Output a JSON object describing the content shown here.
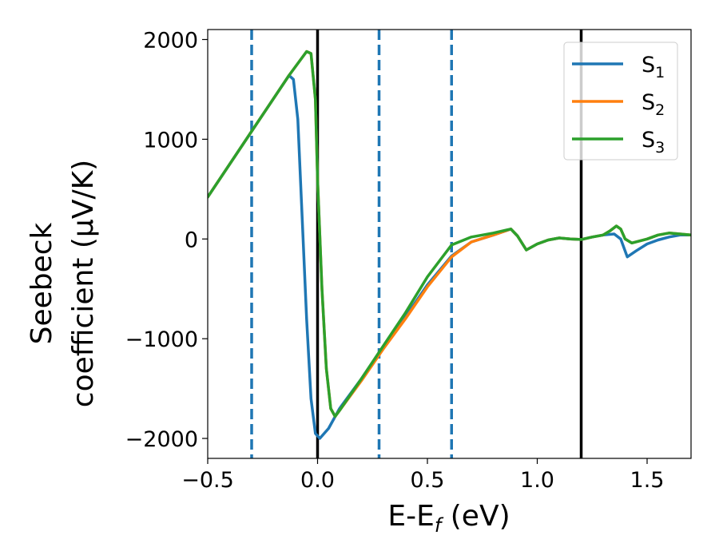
{
  "chart_data": {
    "type": "line",
    "xlabel": "E-E",
    "xlabel_sub": "f",
    "xlabel_unit": " (eV)",
    "ylabel_line1": "Seebeck",
    "ylabel_line2": "coefficient  (μV/K)",
    "xlim": [
      -0.5,
      1.7
    ],
    "ylim": [
      -2200,
      2100
    ],
    "xticks": [
      -0.5,
      0.0,
      0.5,
      1.0,
      1.5
    ],
    "xtick_labels": [
      "−0.5",
      "0.0",
      "0.5",
      "1.0",
      "1.5"
    ],
    "yticks": [
      -2000,
      -1000,
      0,
      1000,
      2000
    ],
    "ytick_labels": [
      "−2000",
      "−1000",
      "0",
      "1000",
      "2000"
    ],
    "grid": false,
    "legend_position": "top-right",
    "vlines_solid": [
      0.0,
      1.2
    ],
    "vlines_dashed": [
      -0.3,
      0.28,
      0.61
    ],
    "colors": {
      "S1": "#1f77b4",
      "S2": "#ff7f0e",
      "S3": "#2ca02c",
      "solid_line": "#000000",
      "dashed_line": "#1f77b4"
    },
    "series": [
      {
        "key": "S1",
        "name": "S",
        "sub": "1",
        "color": "#1f77b4",
        "x": [
          -0.5,
          -0.3,
          -0.13,
          -0.11,
          -0.09,
          -0.07,
          -0.05,
          -0.03,
          -0.01,
          0.01,
          0.05,
          0.1,
          0.2,
          0.3,
          0.4,
          0.5,
          0.61,
          0.7,
          0.8,
          0.88,
          0.91,
          0.95,
          1.0,
          1.05,
          1.1,
          1.15,
          1.2,
          1.25,
          1.3,
          1.35,
          1.38,
          1.41,
          1.45,
          1.5,
          1.55,
          1.6,
          1.65,
          1.7
        ],
        "y": [
          420,
          1080,
          1640,
          1600,
          1200,
          200,
          -800,
          -1600,
          -1950,
          -2000,
          -1900,
          -1700,
          -1400,
          -1080,
          -780,
          -460,
          -170,
          -30,
          40,
          100,
          30,
          -110,
          -50,
          -10,
          10,
          0,
          -5,
          20,
          40,
          50,
          0,
          -180,
          -120,
          -50,
          -10,
          20,
          40,
          40
        ]
      },
      {
        "key": "S2",
        "name": "S",
        "sub": "2",
        "color": "#ff7f0e",
        "x": [
          -0.5,
          -0.3,
          -0.13,
          -0.05,
          -0.03,
          -0.01,
          0.0,
          0.02,
          0.04,
          0.06,
          0.08,
          0.1,
          0.2,
          0.3,
          0.4,
          0.5,
          0.61,
          0.7,
          0.8,
          0.88,
          0.91,
          0.95,
          1.0,
          1.05,
          1.1,
          1.15,
          1.2,
          1.25,
          1.3,
          1.33,
          1.36,
          1.38,
          1.4,
          1.43,
          1.5,
          1.55,
          1.6,
          1.65,
          1.7
        ],
        "y": [
          420,
          1080,
          1640,
          1880,
          1860,
          1400,
          600,
          -500,
          -1300,
          -1700,
          -1780,
          -1720,
          -1420,
          -1100,
          -800,
          -480,
          -180,
          -30,
          40,
          100,
          30,
          -110,
          -50,
          -10,
          10,
          0,
          -5,
          20,
          40,
          80,
          130,
          100,
          0,
          -40,
          0,
          40,
          60,
          50,
          40
        ]
      },
      {
        "key": "S3",
        "name": "S",
        "sub": "3",
        "color": "#2ca02c",
        "x": [
          -0.5,
          -0.3,
          -0.13,
          -0.05,
          -0.03,
          -0.01,
          0.0,
          0.02,
          0.04,
          0.06,
          0.08,
          0.1,
          0.2,
          0.3,
          0.4,
          0.5,
          0.61,
          0.7,
          0.8,
          0.88,
          0.91,
          0.95,
          1.0,
          1.05,
          1.1,
          1.15,
          1.2,
          1.25,
          1.3,
          1.33,
          1.36,
          1.38,
          1.4,
          1.43,
          1.5,
          1.55,
          1.6,
          1.65,
          1.7
        ],
        "y": [
          420,
          1080,
          1640,
          1880,
          1860,
          1400,
          600,
          -500,
          -1300,
          -1700,
          -1780,
          -1720,
          -1400,
          -1070,
          -740,
          -380,
          -60,
          20,
          60,
          100,
          30,
          -110,
          -50,
          -10,
          10,
          0,
          -5,
          20,
          40,
          80,
          130,
          100,
          0,
          -40,
          0,
          40,
          60,
          50,
          40
        ]
      }
    ]
  }
}
